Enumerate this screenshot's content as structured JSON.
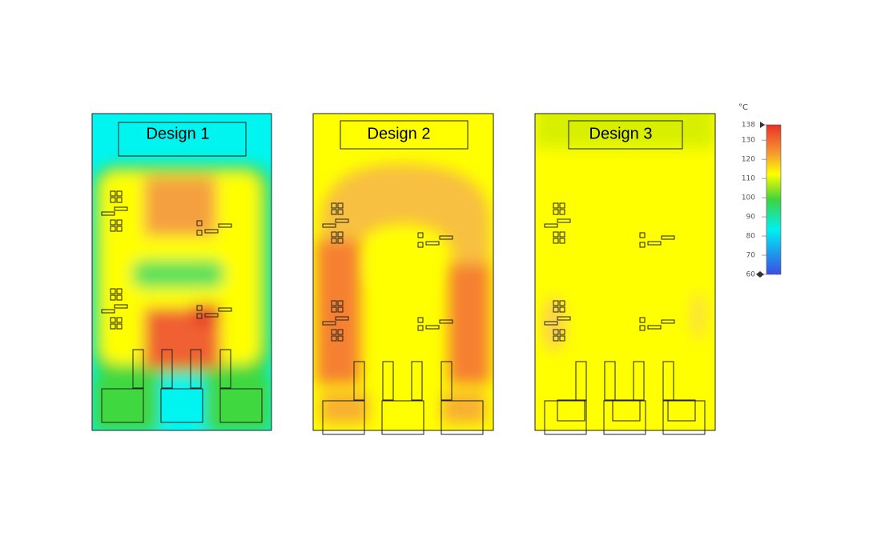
{
  "panels": [
    {
      "label": "Design 1"
    },
    {
      "label": "Design 2"
    },
    {
      "label": "Design 3"
    }
  ],
  "colorbar": {
    "unit": "°C",
    "lim": [
      60,
      138
    ],
    "ticks": [
      138,
      130,
      120,
      110,
      100,
      90,
      80,
      70,
      60
    ]
  }
}
